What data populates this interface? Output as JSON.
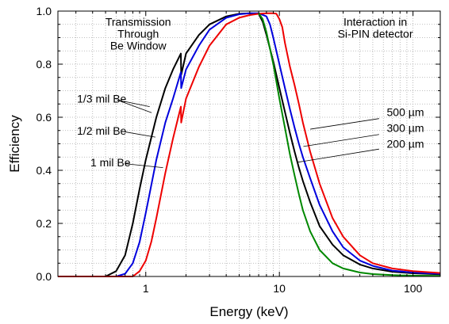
{
  "chart_data": {
    "type": "line",
    "xlabel": "Energy (keV)",
    "ylabel": "Efficiency",
    "xscale": "log",
    "xlim": [
      0.22,
      160
    ],
    "ylim": [
      0,
      1.0
    ],
    "grid": true,
    "x_ticks": [
      {
        "value": 1,
        "label": "1"
      },
      {
        "value": 10,
        "label": "10"
      },
      {
        "value": 100,
        "label": "100"
      }
    ],
    "y_ticks": [
      {
        "value": 0.0,
        "label": "0.0"
      },
      {
        "value": 0.2,
        "label": "0.2"
      },
      {
        "value": 0.4,
        "label": "0.4"
      },
      {
        "value": 0.6,
        "label": "0.6"
      },
      {
        "value": 0.8,
        "label": "0.8"
      },
      {
        "value": 1.0,
        "label": "1.0"
      }
    ],
    "series": [
      {
        "color": "#000000",
        "x": [
          0.22,
          0.5,
          0.6,
          0.7,
          0.8,
          0.9,
          1.0,
          1.2,
          1.4,
          1.6,
          1.83,
          1.84,
          2.0,
          2.5,
          3.0,
          4.0,
          5.0,
          6.0,
          7.0,
          7.5,
          8.0,
          9.0,
          10,
          11,
          12,
          13,
          14,
          15,
          17,
          20,
          25,
          30,
          40,
          50,
          70,
          100,
          160
        ],
        "y": [
          0,
          0,
          0.02,
          0.08,
          0.2,
          0.33,
          0.44,
          0.6,
          0.71,
          0.78,
          0.84,
          0.76,
          0.84,
          0.91,
          0.95,
          0.98,
          0.99,
          0.992,
          0.99,
          0.96,
          0.91,
          0.81,
          0.71,
          0.62,
          0.54,
          0.47,
          0.41,
          0.36,
          0.28,
          0.19,
          0.12,
          0.08,
          0.045,
          0.03,
          0.018,
          0.012,
          0.008
        ]
      },
      {
        "color": "#0000dd",
        "x": [
          0.22,
          0.6,
          0.7,
          0.8,
          0.9,
          1.0,
          1.2,
          1.4,
          1.6,
          1.83,
          1.84,
          2.0,
          2.5,
          3.0,
          4.0,
          5.0,
          6.0,
          7.0,
          8.0,
          8.5,
          9.0,
          10,
          11,
          12,
          13,
          14,
          15,
          17,
          20,
          25,
          30,
          40,
          50,
          70,
          100,
          160
        ],
        "y": [
          0,
          0,
          0.01,
          0.05,
          0.13,
          0.24,
          0.44,
          0.58,
          0.67,
          0.77,
          0.71,
          0.78,
          0.87,
          0.93,
          0.975,
          0.988,
          0.992,
          0.992,
          0.98,
          0.95,
          0.9,
          0.8,
          0.71,
          0.63,
          0.56,
          0.5,
          0.45,
          0.37,
          0.27,
          0.17,
          0.11,
          0.06,
          0.04,
          0.022,
          0.015,
          0.01
        ]
      },
      {
        "color": "#ee0000",
        "x": [
          0.22,
          0.8,
          0.9,
          1.0,
          1.1,
          1.2,
          1.4,
          1.6,
          1.83,
          1.84,
          2.0,
          2.5,
          3.0,
          4.0,
          5.0,
          6.0,
          7.0,
          8.0,
          9.0,
          9.5,
          10,
          10.5,
          11,
          12,
          13,
          14,
          15,
          17,
          20,
          25,
          30,
          40,
          50,
          70,
          100,
          160
        ],
        "y": [
          0,
          0,
          0.02,
          0.06,
          0.13,
          0.22,
          0.39,
          0.52,
          0.64,
          0.58,
          0.67,
          0.79,
          0.87,
          0.95,
          0.975,
          0.985,
          0.99,
          0.992,
          0.992,
          0.99,
          0.97,
          0.94,
          0.88,
          0.79,
          0.72,
          0.65,
          0.58,
          0.47,
          0.35,
          0.22,
          0.15,
          0.08,
          0.05,
          0.03,
          0.02,
          0.013
        ]
      },
      {
        "color": "#008800",
        "x": [
          7.0,
          7.5,
          8.0,
          9.0,
          10,
          11,
          12,
          13,
          14,
          15,
          17,
          20,
          25,
          30,
          40,
          50,
          70,
          100,
          160
        ],
        "y": [
          0.992,
          0.97,
          0.92,
          0.8,
          0.67,
          0.56,
          0.46,
          0.38,
          0.31,
          0.25,
          0.17,
          0.1,
          0.05,
          0.03,
          0.015,
          0.009,
          0.005,
          0.003,
          0.002
        ]
      }
    ],
    "annotations": [
      {
        "text": "Transmission",
        "x": 0.21,
        "y": 0.945,
        "anchor": "middle"
      },
      {
        "text": "Through",
        "x": 0.21,
        "y": 0.9,
        "anchor": "middle"
      },
      {
        "text": "Be Window",
        "x": 0.21,
        "y": 0.855,
        "anchor": "middle"
      },
      {
        "text": "Interaction in",
        "x": 0.83,
        "y": 0.945,
        "anchor": "middle"
      },
      {
        "text": "Si-PIN detector",
        "x": 0.83,
        "y": 0.9,
        "anchor": "middle"
      },
      {
        "text": "1/3 mil Be",
        "x": 0.05,
        "y": 0.655,
        "anchor": "start",
        "pointer_to": [
          0.245,
          0.617
        ],
        "pointer_from": [
          0.155,
          0.665
        ],
        "pointer_to2": [
          0.24,
          0.64
        ]
      },
      {
        "text": "1/2 mil Be",
        "x": 0.05,
        "y": 0.535,
        "anchor": "start",
        "pointer_to": [
          0.255,
          0.525
        ],
        "pointer_from": [
          0.175,
          0.545
        ]
      },
      {
        "text": "1 mil Be",
        "x": 0.085,
        "y": 0.415,
        "anchor": "start",
        "pointer_to": [
          0.275,
          0.41
        ],
        "pointer_from": [
          0.175,
          0.425
        ]
      },
      {
        "text": "500 µm",
        "x": 0.86,
        "y": 0.605,
        "anchor": "start",
        "pointer_to": [
          0.66,
          0.555
        ],
        "pointer_from": [
          0.84,
          0.595
        ]
      },
      {
        "text": "300 µm",
        "x": 0.86,
        "y": 0.545,
        "anchor": "start",
        "pointer_to": [
          0.642,
          0.49
        ],
        "pointer_from": [
          0.84,
          0.535
        ]
      },
      {
        "text": "200 µm",
        "x": 0.86,
        "y": 0.485,
        "anchor": "start",
        "pointer_to": [
          0.625,
          0.43
        ],
        "pointer_from": [
          0.84,
          0.48
        ]
      }
    ]
  }
}
